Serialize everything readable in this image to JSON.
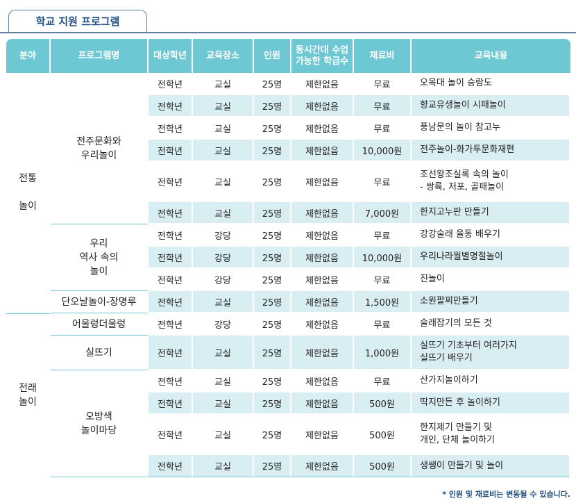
{
  "title": "학교 지원 프로그램",
  "headers": [
    "분야",
    "프로그램명",
    "대상학년",
    "교육장소",
    "인원",
    "동시간대 수업\n가능한 학급수",
    "재료비",
    "교육내용"
  ],
  "headers_lines": [
    [
      "분야"
    ],
    [
      "프로그램명"
    ],
    [
      "대상학년"
    ],
    [
      "교육장소"
    ],
    [
      "인원"
    ],
    [
      "동시간대 수업",
      "가능한 학급수"
    ],
    [
      "재료비"
    ],
    [
      "교육내용"
    ]
  ],
  "categories": [
    {
      "name_lines": [
        "전통",
        "",
        "놀이"
      ]
    },
    {
      "name_lines": [
        "전래",
        "놀이"
      ]
    }
  ],
  "programs": [
    {
      "name_lines": [
        "전주문화와",
        "우리놀이"
      ]
    },
    {
      "name_lines": [
        "우리",
        "역사 속의",
        "놀이"
      ]
    },
    {
      "name_lines": [
        "단오날놀이-장명루"
      ]
    },
    {
      "name_lines": [
        "어울렁더울렁"
      ]
    },
    {
      "name_lines": [
        "실뜨기"
      ]
    },
    {
      "name_lines": [
        "오방색",
        "놀이마당"
      ]
    }
  ],
  "rows": [
    {
      "grade": "전학년",
      "place": "교실",
      "people": "25명",
      "classes": "제한없음",
      "fee": "무료",
      "content": [
        "오목대 놀이 승람도"
      ]
    },
    {
      "grade": "전학년",
      "place": "교실",
      "people": "25명",
      "classes": "제한없음",
      "fee": "무료",
      "content": [
        "향교유생놀이 시패놀이"
      ]
    },
    {
      "grade": "전학년",
      "place": "교실",
      "people": "25명",
      "classes": "제한없음",
      "fee": "무료",
      "content": [
        "풍남문의 놀이 참고누"
      ]
    },
    {
      "grade": "전학년",
      "place": "교실",
      "people": "25명",
      "classes": "제한없음",
      "fee": "10,000원",
      "content": [
        "전주놀이-화가투문화재편"
      ]
    },
    {
      "grade": "전학년",
      "place": "교실",
      "people": "25명",
      "classes": "제한없음",
      "fee": "무료",
      "content": [
        "조선왕조실록 속의 놀이",
        "- 쌍륙, 저포, 골패놀이"
      ]
    },
    {
      "grade": "전학년",
      "place": "교실",
      "people": "25명",
      "classes": "제한없음",
      "fee": "7,000원",
      "content": [
        "한지고누판 만들기"
      ]
    },
    {
      "grade": "전학년",
      "place": "강당",
      "people": "25명",
      "classes": "제한없음",
      "fee": "무료",
      "content": [
        "강강술래 율동 배우기"
      ]
    },
    {
      "grade": "전학년",
      "place": "강당",
      "people": "25명",
      "classes": "제한없음",
      "fee": "10,000원",
      "content": [
        "우리나라월별명절놀이"
      ]
    },
    {
      "grade": "전학년",
      "place": "강당",
      "people": "25명",
      "classes": "제한없음",
      "fee": "무료",
      "content": [
        "진놀이"
      ]
    },
    {
      "grade": "전학년",
      "place": "교실",
      "people": "25명",
      "classes": "제한없음",
      "fee": "1,500원",
      "content": [
        "소원팔찌만들기"
      ]
    },
    {
      "grade": "전학년",
      "place": "강당",
      "people": "25명",
      "classes": "제한없음",
      "fee": "무료",
      "content": [
        "술래잡기의 모든 것"
      ]
    },
    {
      "grade": "전학년",
      "place": "교실",
      "people": "25명",
      "classes": "제한없음",
      "fee": "1,000원",
      "content": [
        "실뜨기 기초부터 여러가지",
        "실뜨기 배우기"
      ]
    },
    {
      "grade": "전학년",
      "place": "교실",
      "people": "25명",
      "classes": "제한없음",
      "fee": "무료",
      "content": [
        "산가지놀이하기"
      ]
    },
    {
      "grade": "전학년",
      "place": "교실",
      "people": "25명",
      "classes": "제한없음",
      "fee": "500원",
      "content": [
        "딱지만든 후 놀이하기"
      ]
    },
    {
      "grade": "전학년",
      "place": "교실",
      "people": "25명",
      "classes": "제한없음",
      "fee": "500원",
      "content": [
        "한지제기 만들기 및",
        "개인, 단체 놀이하기"
      ]
    },
    {
      "grade": "전학년",
      "place": "교실",
      "people": "25명",
      "classes": "제한없음",
      "fee": "500원",
      "content": [
        "생쌩이 만들기 및 놀이"
      ]
    }
  ],
  "footnote": "* 인원 및 재료비는 변동될 수 있습니다."
}
